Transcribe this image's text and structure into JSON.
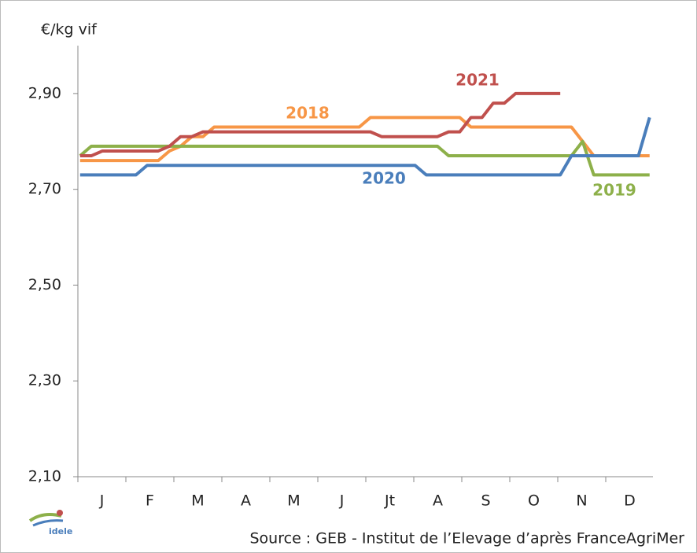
{
  "chart_data": {
    "type": "line",
    "y_axis_label": "€/kg vif",
    "source": "Source : GEB - Institut de l’Elevage d’après FranceAgriMer",
    "logo": "idele",
    "months": [
      "J",
      "F",
      "M",
      "A",
      "M",
      "J",
      "Jt",
      "A",
      "S",
      "O",
      "N",
      "D"
    ],
    "x": [
      1,
      2,
      3,
      4,
      5,
      6,
      7,
      8,
      9,
      10,
      11,
      12,
      13,
      14,
      15,
      16,
      17,
      18,
      19,
      20,
      21,
      22,
      23,
      24,
      25,
      26,
      27,
      28,
      29,
      30,
      31,
      32,
      33,
      34,
      35,
      36,
      37,
      38,
      39,
      40,
      41,
      42,
      43,
      44,
      45,
      46,
      47,
      48,
      49,
      50,
      51,
      52
    ],
    "xlim": [
      0.8,
      52.3
    ],
    "ylim": [
      2.1,
      3.0
    ],
    "yticks": [
      {
        "value": 2.1,
        "label": "2,10"
      },
      {
        "value": 2.3,
        "label": "2,30"
      },
      {
        "value": 2.5,
        "label": "2,50"
      },
      {
        "value": 2.7,
        "label": "2,70"
      },
      {
        "value": 2.9,
        "label": "2,90"
      }
    ],
    "series": [
      {
        "name": "2018",
        "color": "#f79646",
        "values": [
          2.76,
          2.76,
          2.76,
          2.76,
          2.76,
          2.76,
          2.76,
          2.76,
          2.78,
          2.79,
          2.81,
          2.81,
          2.83,
          2.83,
          2.83,
          2.83,
          2.83,
          2.83,
          2.83,
          2.83,
          2.83,
          2.83,
          2.83,
          2.83,
          2.83,
          2.83,
          2.85,
          2.85,
          2.85,
          2.85,
          2.85,
          2.85,
          2.85,
          2.85,
          2.85,
          2.83,
          2.83,
          2.83,
          2.83,
          2.83,
          2.83,
          2.83,
          2.83,
          2.83,
          2.83,
          2.8,
          2.77,
          2.77,
          2.77,
          2.77,
          2.77,
          2.77
        ]
      },
      {
        "name": "2019",
        "color": "#8db04a",
        "values": [
          2.77,
          2.79,
          2.79,
          2.79,
          2.79,
          2.79,
          2.79,
          2.79,
          2.79,
          2.79,
          2.79,
          2.79,
          2.79,
          2.79,
          2.79,
          2.79,
          2.79,
          2.79,
          2.79,
          2.79,
          2.79,
          2.79,
          2.79,
          2.79,
          2.79,
          2.79,
          2.79,
          2.79,
          2.79,
          2.79,
          2.79,
          2.79,
          2.79,
          2.77,
          2.77,
          2.77,
          2.77,
          2.77,
          2.77,
          2.77,
          2.77,
          2.77,
          2.77,
          2.77,
          2.77,
          2.8,
          2.73,
          2.73,
          2.73,
          2.73,
          2.73,
          2.73
        ]
      },
      {
        "name": "2020",
        "color": "#4a7ebb",
        "values": [
          2.73,
          2.73,
          2.73,
          2.73,
          2.73,
          2.73,
          2.75,
          2.75,
          2.75,
          2.75,
          2.75,
          2.75,
          2.75,
          2.75,
          2.75,
          2.75,
          2.75,
          2.75,
          2.75,
          2.75,
          2.75,
          2.75,
          2.75,
          2.75,
          2.75,
          2.75,
          2.75,
          2.75,
          2.75,
          2.75,
          2.75,
          2.73,
          2.73,
          2.73,
          2.73,
          2.73,
          2.73,
          2.73,
          2.73,
          2.73,
          2.73,
          2.73,
          2.73,
          2.73,
          2.77,
          2.77,
          2.77,
          2.77,
          2.77,
          2.77,
          2.77,
          2.85
        ]
      },
      {
        "name": "2021",
        "color": "#c0504d",
        "values": [
          2.77,
          2.77,
          2.78,
          2.78,
          2.78,
          2.78,
          2.78,
          2.78,
          2.79,
          2.81,
          2.81,
          2.82,
          2.82,
          2.82,
          2.82,
          2.82,
          2.82,
          2.82,
          2.82,
          2.82,
          2.82,
          2.82,
          2.82,
          2.82,
          2.82,
          2.82,
          2.82,
          2.81,
          2.81,
          2.81,
          2.81,
          2.81,
          2.81,
          2.82,
          2.82,
          2.85,
          2.85,
          2.88,
          2.88,
          2.9,
          2.9,
          2.9,
          2.9,
          2.9,
          null,
          null,
          null,
          null,
          null,
          null,
          null,
          null
        ]
      }
    ]
  }
}
